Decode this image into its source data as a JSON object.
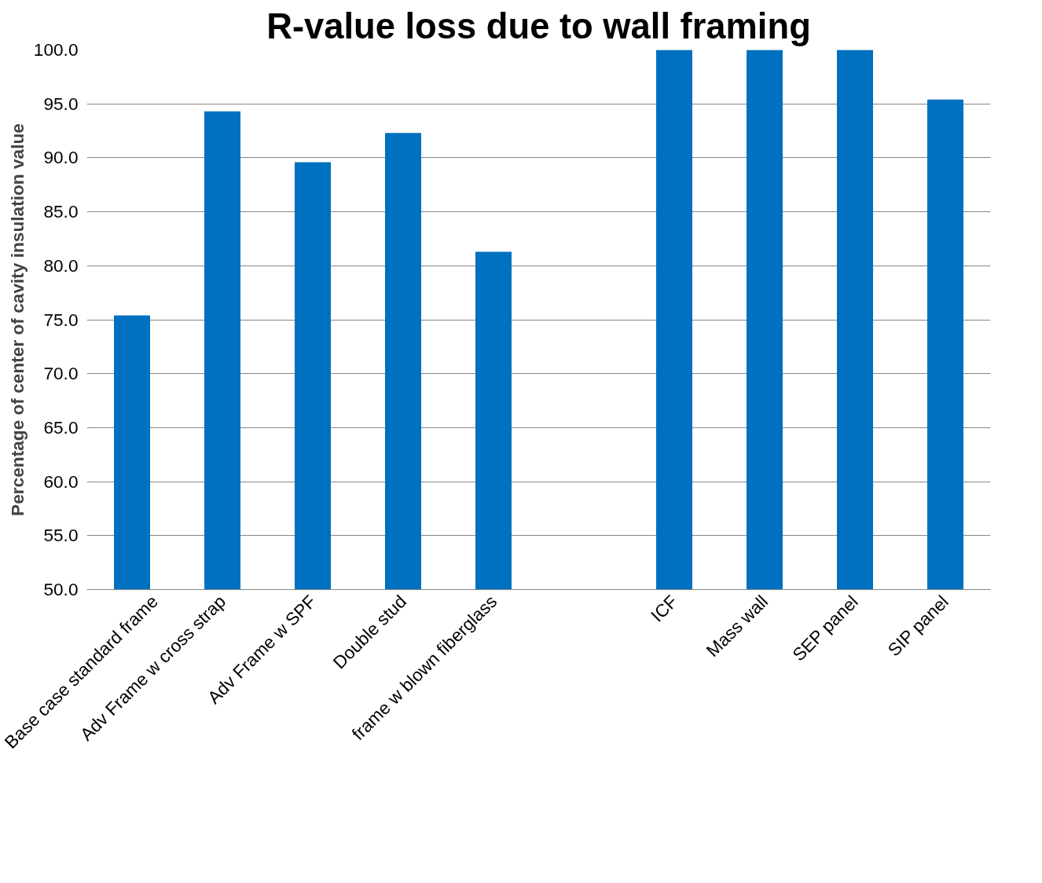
{
  "chart_data": {
    "type": "bar",
    "title": "R-value loss due to wall framing",
    "ylabel": "Percentage of center of cavity insulation value",
    "categories": [
      "Base case standard frame",
      "Adv Frame w cross strap",
      "Adv Frame w SPF",
      "Double stud",
      "frame w blown fiberglass",
      null,
      "ICF",
      "Mass wall",
      "SEP panel",
      "SIP panel"
    ],
    "values": [
      75.4,
      94.3,
      89.6,
      92.3,
      81.3,
      null,
      100,
      100,
      100,
      95.4
    ],
    "color": "#0070c0",
    "ylim": [
      50,
      100
    ],
    "yticks": [
      {
        "value": 50,
        "label": "50.0"
      },
      {
        "value": 55,
        "label": "55.0"
      },
      {
        "value": 60,
        "label": "60.0"
      },
      {
        "value": 65,
        "label": "65.0"
      },
      {
        "value": 70,
        "label": "70.0"
      },
      {
        "value": 75,
        "label": "75.0"
      },
      {
        "value": 80,
        "label": "80.0"
      },
      {
        "value": 85,
        "label": "85.0"
      },
      {
        "value": 90,
        "label": "90.0"
      },
      {
        "value": 95,
        "label": "95.0"
      },
      {
        "value": 100,
        "label": "100.0"
      }
    ],
    "grid": "y"
  }
}
